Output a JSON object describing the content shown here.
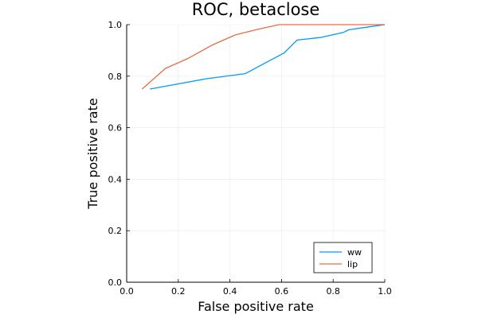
{
  "chart_data": {
    "type": "line",
    "title": "ROC, betaclose",
    "xlabel": "False positive rate",
    "ylabel": "True positive rate",
    "xlim": [
      0,
      1
    ],
    "ylim": [
      0,
      1
    ],
    "xticks": [
      0,
      0.2,
      0.4,
      0.6,
      0.8,
      1
    ],
    "yticks": [
      0,
      0.2,
      0.4,
      0.6,
      0.8,
      1
    ],
    "xtick_labels": [
      "0.0",
      "0.2",
      "0.4",
      "0.6",
      "0.8",
      "1.0"
    ],
    "ytick_labels": [
      "0.0",
      "0.2",
      "0.4",
      "0.6",
      "0.8",
      "1.0"
    ],
    "grid": true,
    "legend_position": "bottom-right",
    "series": [
      {
        "name": "ww",
        "color": "#009AF9",
        "x": [
          0.09,
          0.2,
          0.31,
          0.46,
          0.61,
          0.66,
          0.75,
          0.84,
          0.86,
          0.93,
          1.0
        ],
        "y": [
          0.75,
          0.77,
          0.79,
          0.81,
          0.89,
          0.94,
          0.95,
          0.97,
          0.98,
          0.99,
          1.0
        ]
      },
      {
        "name": "lip",
        "color": "#E26F46",
        "x": [
          0.06,
          0.15,
          0.24,
          0.33,
          0.42,
          0.5,
          0.59,
          0.68,
          0.78,
          0.9,
          1.0
        ],
        "y": [
          0.75,
          0.83,
          0.87,
          0.92,
          0.96,
          0.98,
          1.0,
          1.0,
          1.0,
          1.0,
          1.0
        ]
      }
    ]
  }
}
